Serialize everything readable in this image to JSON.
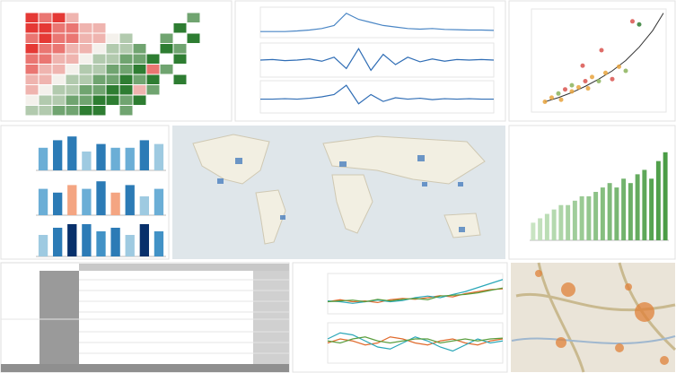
{
  "chart_data": [
    {
      "type": "heatmap",
      "zlim": [
        -3,
        3
      ],
      "colors": [
        "#e53935",
        "#f4f1ec",
        "#2e7d32"
      ],
      "values": [
        [
          -3,
          -2,
          -3,
          -1,
          null,
          null,
          null,
          null,
          null,
          null,
          null,
          null,
          2,
          null
        ],
        [
          -3,
          -3,
          -2,
          -2,
          -1,
          -1,
          null,
          null,
          null,
          null,
          null,
          3,
          null,
          null
        ],
        [
          -2,
          -3,
          -2,
          -2,
          -1,
          -1,
          0,
          1,
          null,
          null,
          2,
          null,
          3,
          null
        ],
        [
          -3,
          -2,
          -2,
          -1,
          -1,
          0,
          1,
          1,
          2,
          null,
          3,
          2,
          null,
          null
        ],
        [
          -2,
          -2,
          -1,
          -1,
          0,
          1,
          1,
          2,
          2,
          3,
          null,
          3,
          null,
          null
        ],
        [
          -2,
          -1,
          -1,
          0,
          1,
          1,
          2,
          2,
          3,
          -2,
          2,
          null,
          null,
          null
        ],
        [
          -1,
          -1,
          0,
          1,
          1,
          2,
          2,
          3,
          2,
          3,
          null,
          3,
          null,
          null
        ],
        [
          -1,
          0,
          1,
          1,
          2,
          2,
          3,
          3,
          -1,
          2,
          null,
          null,
          null,
          null
        ],
        [
          0,
          1,
          1,
          2,
          2,
          3,
          3,
          2,
          3,
          null,
          null,
          null,
          null,
          null
        ],
        [
          1,
          1,
          2,
          2,
          3,
          3,
          null,
          2,
          null,
          null,
          null,
          null,
          null,
          null
        ]
      ]
    },
    {
      "type": "line",
      "ylim": [
        0,
        10
      ],
      "series": [
        {
          "color": "#4a86c5",
          "values": [
            2,
            2,
            2,
            2.2,
            2.5,
            3,
            4,
            8,
            6,
            5,
            4,
            3.5,
            3,
            2.8,
            3,
            2.7,
            2.6,
            2.5,
            2.5,
            2.4
          ]
        }
      ]
    },
    {
      "type": "line",
      "ylim": [
        -3,
        3
      ],
      "series": [
        {
          "color": "#2f6db5",
          "values": [
            0,
            0.1,
            -0.1,
            0,
            0.2,
            -0.2,
            0.5,
            -1.5,
            2,
            -1.8,
            1,
            -0.8,
            0.5,
            -0.3,
            0.2,
            -0.2,
            0.1,
            0,
            0.1,
            0
          ]
        }
      ]
    },
    {
      "type": "line",
      "ylim": [
        -3,
        4
      ],
      "series": [
        {
          "color": "#2f6db5",
          "values": [
            0,
            0,
            0.1,
            0,
            0.2,
            0.5,
            1,
            3,
            -1,
            1,
            -0.5,
            0.3,
            0,
            0.2,
            -0.1,
            0.1,
            0,
            0.1,
            0,
            0
          ]
        }
      ]
    },
    {
      "type": "scatter",
      "xlim": [
        0,
        10
      ],
      "ylim": [
        0,
        10
      ],
      "x": [
        1,
        1.5,
        2,
        2.2,
        2.5,
        3,
        3,
        3.5,
        4,
        4.2,
        4.5,
        5,
        5.5,
        6,
        6.5,
        7,
        3.8,
        5.2,
        7.5,
        8
      ],
      "y": [
        1,
        1.4,
        1.8,
        1.2,
        2.2,
        2,
        2.6,
        2.4,
        3,
        2.3,
        3.4,
        3,
        3.8,
        3.2,
        4.4,
        4,
        4.5,
        6,
        8.8,
        8.5
      ],
      "colors": [
        "#e8a33d",
        "#e8a33d",
        "#8bb35a",
        "#e8a33d",
        "#d9534f",
        "#e8a33d",
        "#8bb35a",
        "#e8a33d",
        "#d9534f",
        "#e8a33d",
        "#e8a33d",
        "#8bb35a",
        "#e8a33d",
        "#d9534f",
        "#e8a33d",
        "#8bb35a",
        "#d9534f",
        "#d9534f",
        "#d9534f",
        "#2e7d32"
      ],
      "curve": {
        "color": "#333333",
        "x": [
          1,
          2,
          3,
          4,
          5,
          6,
          7,
          8,
          9,
          9.8
        ],
        "y": [
          1,
          1.4,
          1.9,
          2.5,
          3.2,
          4,
          5,
          6.3,
          7.9,
          9.6
        ]
      }
    },
    {
      "type": "bar",
      "ylim": [
        0,
        10
      ],
      "values": [
        6,
        8,
        9,
        5,
        7,
        6,
        6,
        8,
        7
      ],
      "colors": [
        "#6baed6",
        "#2c7bb6",
        "#2c7bb6",
        "#9ecae1",
        "#2c7bb6",
        "#6baed6",
        "#6baed6",
        "#2c7bb6",
        "#9ecae1"
      ]
    },
    {
      "type": "bar",
      "ylim": [
        0,
        10
      ],
      "values": [
        7,
        6,
        8,
        7,
        9,
        6,
        8,
        5,
        7
      ],
      "colors": [
        "#6baed6",
        "#2c7bb6",
        "#f4a582",
        "#6baed6",
        "#2c7bb6",
        "#f4a582",
        "#2c7bb6",
        "#9ecae1",
        "#6baed6"
      ]
    },
    {
      "type": "bar",
      "ylim": [
        0,
        10
      ],
      "values": [
        6,
        8,
        9,
        9,
        7,
        8,
        6,
        9,
        7
      ],
      "colors": [
        "#9ecae1",
        "#2c7bb6",
        "#08306b",
        "#2c7bb6",
        "#4292c6",
        "#2c7bb6",
        "#9ecae1",
        "#08306b",
        "#4292c6"
      ]
    },
    {
      "type": "bar",
      "ylim": [
        0,
        11
      ],
      "color": "#4a9c45",
      "values": [
        2,
        2.5,
        3,
        3.5,
        4,
        4,
        4.5,
        5,
        5,
        5.5,
        6,
        6.5,
        6,
        7,
        6.5,
        7.5,
        8,
        7,
        9,
        10
      ]
    },
    {
      "type": "line",
      "ylim": [
        0,
        10
      ],
      "series": [
        {
          "color": "#e0692b",
          "values": [
            3,
            3.5,
            3,
            3.2,
            2.8,
            3.5,
            3.8,
            3.6,
            4,
            4.5,
            4.2,
            5,
            5.5,
            6,
            6.2
          ]
        },
        {
          "color": "#2aa7b8",
          "values": [
            3.2,
            3,
            2.6,
            3,
            3.4,
            3,
            3.3,
            4,
            4.4,
            4,
            4.8,
            5.5,
            6.5,
            7.5,
            8.5
          ]
        },
        {
          "color": "#5a9e3e",
          "values": [
            3,
            3.2,
            3.4,
            3,
            3.6,
            3.2,
            3.6,
            3.8,
            3.5,
            4.4,
            4.6,
            4.8,
            5.2,
            5.8,
            6.4
          ]
        }
      ]
    },
    {
      "type": "line",
      "ylim": [
        0,
        10
      ],
      "series": [
        {
          "color": "#e0692b",
          "values": [
            5,
            6,
            5.5,
            4.5,
            5,
            6.5,
            6,
            5,
            4.5,
            5.5,
            6,
            5,
            4.5,
            5.5,
            6
          ]
        },
        {
          "color": "#2aa7b8",
          "values": [
            6,
            7.5,
            7,
            5.5,
            4,
            3.5,
            5,
            6.5,
            5.5,
            4,
            3,
            4.5,
            6,
            5,
            5.5
          ]
        },
        {
          "color": "#5a9e3e",
          "values": [
            5.5,
            5,
            6,
            6.5,
            5.5,
            5,
            5.5,
            6,
            6,
            5,
            5.5,
            6,
            5.5,
            6,
            6.2
          ]
        }
      ]
    }
  ]
}
